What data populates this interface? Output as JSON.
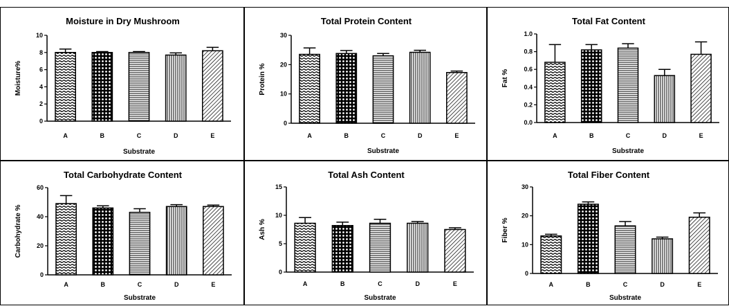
{
  "chart_data": [
    {
      "type": "bar",
      "title": "Moisture in Dry Mushroom",
      "xlabel": "Substrate",
      "ylabel": "Moisture%",
      "ylim": [
        0,
        10
      ],
      "yticks": [
        "0",
        "2",
        "4",
        "6",
        "8",
        "10"
      ],
      "categories": [
        "A",
        "B",
        "C",
        "D",
        "E"
      ],
      "values": [
        8.0,
        8.0,
        8.0,
        7.7,
        8.2
      ],
      "errors": [
        0.4,
        0.1,
        0.1,
        0.25,
        0.4
      ],
      "patterns": [
        "wave",
        "dots",
        "hlines",
        "vlines",
        "diag"
      ]
    },
    {
      "type": "bar",
      "title": "Total Protein Content",
      "xlabel": "Substrate",
      "ylabel": "Protein %",
      "ylim": [
        0,
        30
      ],
      "yticks": [
        "0",
        "10",
        "20",
        "30"
      ],
      "categories": [
        "A",
        "B",
        "C",
        "D",
        "E"
      ],
      "values": [
        23.5,
        23.8,
        23.0,
        24.2,
        17.3
      ],
      "errors": [
        2.2,
        1.0,
        0.8,
        0.7,
        0.5
      ],
      "patterns": [
        "wave",
        "dots",
        "hlines",
        "vlines",
        "diag"
      ]
    },
    {
      "type": "bar",
      "title": "Total Fat Content",
      "xlabel": "Substrate",
      "ylabel": "Fat %",
      "ylim": [
        0,
        1.0
      ],
      "yticks": [
        "0.0",
        "0.2",
        "0.4",
        "0.6",
        "0.8",
        "1.0"
      ],
      "categories": [
        "A",
        "B",
        "C",
        "D",
        "E"
      ],
      "values": [
        0.68,
        0.82,
        0.84,
        0.53,
        0.77
      ],
      "errors": [
        0.2,
        0.06,
        0.05,
        0.07,
        0.14
      ],
      "patterns": [
        "wave",
        "dots",
        "hlines",
        "vlines",
        "diag"
      ]
    },
    {
      "type": "bar",
      "title": "Total Carbohydrate Content",
      "xlabel": "Substrate",
      "ylabel": "Carbohydrate %",
      "ylim": [
        0,
        60
      ],
      "yticks": [
        "0",
        "20",
        "40",
        "60"
      ],
      "categories": [
        "A",
        "B",
        "C",
        "D",
        "E"
      ],
      "values": [
        49,
        46,
        43,
        47,
        47
      ],
      "errors": [
        5.5,
        1.5,
        2.5,
        1.3,
        1.0
      ],
      "patterns": [
        "wave",
        "dots",
        "hlines",
        "vlines",
        "diag"
      ]
    },
    {
      "type": "bar",
      "title": "Total Ash Content",
      "xlabel": "Substrate",
      "ylabel": "Ash %",
      "ylim": [
        0,
        15
      ],
      "yticks": [
        "0",
        "5",
        "10",
        "15"
      ],
      "categories": [
        "A",
        "B",
        "C",
        "D",
        "E"
      ],
      "values": [
        8.6,
        8.2,
        8.6,
        8.6,
        7.5
      ],
      "errors": [
        1.0,
        0.6,
        0.7,
        0.3,
        0.3
      ],
      "patterns": [
        "wave",
        "dots",
        "hlines",
        "vlines",
        "diag"
      ]
    },
    {
      "type": "bar",
      "title": "Total Fiber Content",
      "xlabel": "Substrate",
      "ylabel": "Fiber %",
      "ylim": [
        0,
        30
      ],
      "yticks": [
        "0",
        "10",
        "20",
        "30"
      ],
      "categories": [
        "A",
        "B",
        "C",
        "D",
        "E"
      ],
      "values": [
        13,
        24,
        16.5,
        12,
        19.5
      ],
      "errors": [
        0.6,
        0.8,
        1.5,
        0.6,
        1.5
      ],
      "patterns": [
        "wave",
        "dots",
        "hlines",
        "vlines",
        "diag"
      ]
    }
  ]
}
